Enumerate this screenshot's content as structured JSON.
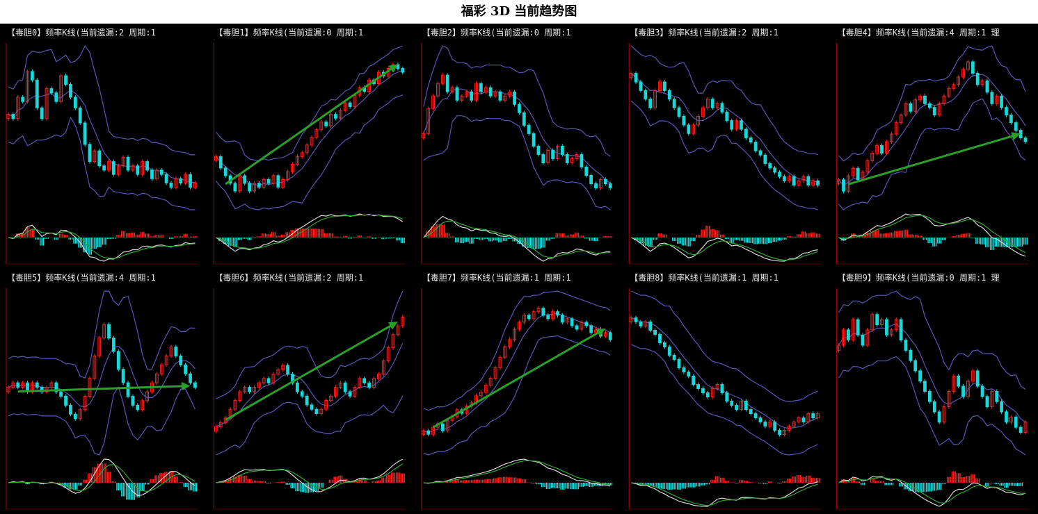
{
  "page": {
    "title": "福彩 3D 当前趋势图"
  },
  "chart_data": [
    {
      "type": "candlestick",
      "title": "【毒胆0】频率K线(当前遗漏:2 周期:1",
      "trend": "down",
      "levels": [
        52,
        50,
        60,
        58,
        72,
        68,
        55,
        50,
        64,
        62,
        58,
        70,
        66,
        60,
        55,
        48,
        38,
        30,
        35,
        28,
        26,
        30,
        24,
        28,
        32,
        26,
        28,
        24,
        30,
        26,
        22,
        26,
        24,
        20,
        18,
        22,
        20,
        24,
        18,
        20
      ]
    },
    {
      "type": "candlestick",
      "title": "【毒胆1】频率K线(当前遗漏:0 周期:1",
      "trend": "up",
      "levels": [
        38,
        32,
        28,
        24,
        20,
        28,
        24,
        20,
        24,
        22,
        26,
        24,
        28,
        22,
        26,
        30,
        34,
        38,
        40,
        44,
        48,
        52,
        56,
        54,
        60,
        58,
        62,
        66,
        64,
        70,
        74,
        72,
        78,
        76,
        82,
        80,
        84,
        86,
        84,
        82
      ]
    },
    {
      "type": "candlestick",
      "title": "【毒胆2】频率K线(当前遗漏:0 周期:1",
      "trend": "down",
      "levels": [
        40,
        52,
        58,
        64,
        68,
        60,
        62,
        56,
        58,
        60,
        56,
        64,
        60,
        62,
        58,
        60,
        56,
        58,
        60,
        54,
        50,
        44,
        40,
        34,
        30,
        26,
        32,
        28,
        34,
        30,
        26,
        28,
        30,
        24,
        20,
        16,
        14,
        18,
        16,
        14
      ]
    },
    {
      "type": "candlestick",
      "title": "【毒胆3】频率K线(当前遗漏:2 周期:1",
      "trend": "down",
      "levels": [
        60,
        56,
        52,
        48,
        44,
        52,
        56,
        52,
        48,
        44,
        40,
        36,
        32,
        36,
        40,
        44,
        48,
        44,
        46,
        42,
        38,
        34,
        38,
        34,
        30,
        28,
        24,
        22,
        18,
        16,
        14,
        12,
        10,
        12,
        8,
        10,
        12,
        8,
        10,
        8
      ]
    },
    {
      "type": "candlestick",
      "title": "【毒胆4】频率K线(当前遗漏:4 周期:1 理",
      "trend": "up",
      "levels": [
        20,
        14,
        22,
        26,
        20,
        24,
        30,
        34,
        38,
        34,
        40,
        44,
        50,
        54,
        60,
        56,
        62,
        64,
        60,
        58,
        54,
        60,
        64,
        68,
        70,
        74,
        78,
        82,
        76,
        70,
        72,
        66,
        60,
        64,
        58,
        54,
        50,
        46,
        42,
        40
      ]
    },
    {
      "type": "candlestick",
      "title": "【毒胆5】频率K线(当前遗漏:4 周期:1",
      "trend": "flat",
      "levels": [
        44,
        46,
        44,
        46,
        42,
        46,
        44,
        42,
        44,
        46,
        42,
        40,
        36,
        32,
        30,
        34,
        40,
        48,
        58,
        66,
        72,
        66,
        60,
        52,
        46,
        40,
        36,
        34,
        38,
        42,
        46,
        50,
        54,
        58,
        62,
        58,
        54,
        50,
        46,
        44
      ]
    },
    {
      "type": "candlestick",
      "title": "【毒胆6】频率K线(当前遗漏:2 周期:1",
      "trend": "up",
      "levels": [
        30,
        32,
        34,
        38,
        42,
        46,
        48,
        46,
        48,
        50,
        52,
        50,
        54,
        56,
        58,
        54,
        50,
        46,
        44,
        40,
        38,
        36,
        38,
        42,
        44,
        48,
        50,
        46,
        44,
        48,
        52,
        50,
        48,
        52,
        54,
        60,
        66,
        72,
        76,
        80
      ]
    },
    {
      "type": "candlestick",
      "title": "【毒胆7】频率K线(当前遗漏:1 周期:1",
      "trend": "up",
      "levels": [
        20,
        18,
        22,
        24,
        20,
        26,
        28,
        32,
        30,
        34,
        36,
        40,
        42,
        46,
        50,
        56,
        62,
        68,
        72,
        78,
        82,
        86,
        84,
        88,
        90,
        86,
        84,
        88,
        86,
        82,
        84,
        80,
        78,
        82,
        80,
        76,
        78,
        74,
        76,
        72
      ]
    },
    {
      "type": "candlestick",
      "title": "【毒胆8】频率K线(当前遗漏:1 周期:1",
      "trend": "down",
      "levels": [
        72,
        70,
        68,
        70,
        66,
        64,
        60,
        58,
        54,
        52,
        48,
        46,
        44,
        40,
        38,
        36,
        34,
        38,
        40,
        36,
        32,
        30,
        28,
        32,
        28,
        26,
        24,
        22,
        20,
        22,
        18,
        16,
        18,
        20,
        22,
        24,
        22,
        26,
        24,
        26
      ]
    },
    {
      "type": "candlestick",
      "title": "【毒胆9】频率K线(当前遗漏:0 周期:1 理",
      "trend": "down",
      "levels": [
        60,
        66,
        62,
        70,
        64,
        60,
        66,
        72,
        68,
        70,
        64,
        66,
        70,
        62,
        58,
        54,
        50,
        46,
        42,
        38,
        34,
        30,
        36,
        42,
        48,
        44,
        40,
        46,
        50,
        44,
        40,
        36,
        42,
        38,
        34,
        30,
        32,
        28,
        26,
        30
      ]
    }
  ]
}
